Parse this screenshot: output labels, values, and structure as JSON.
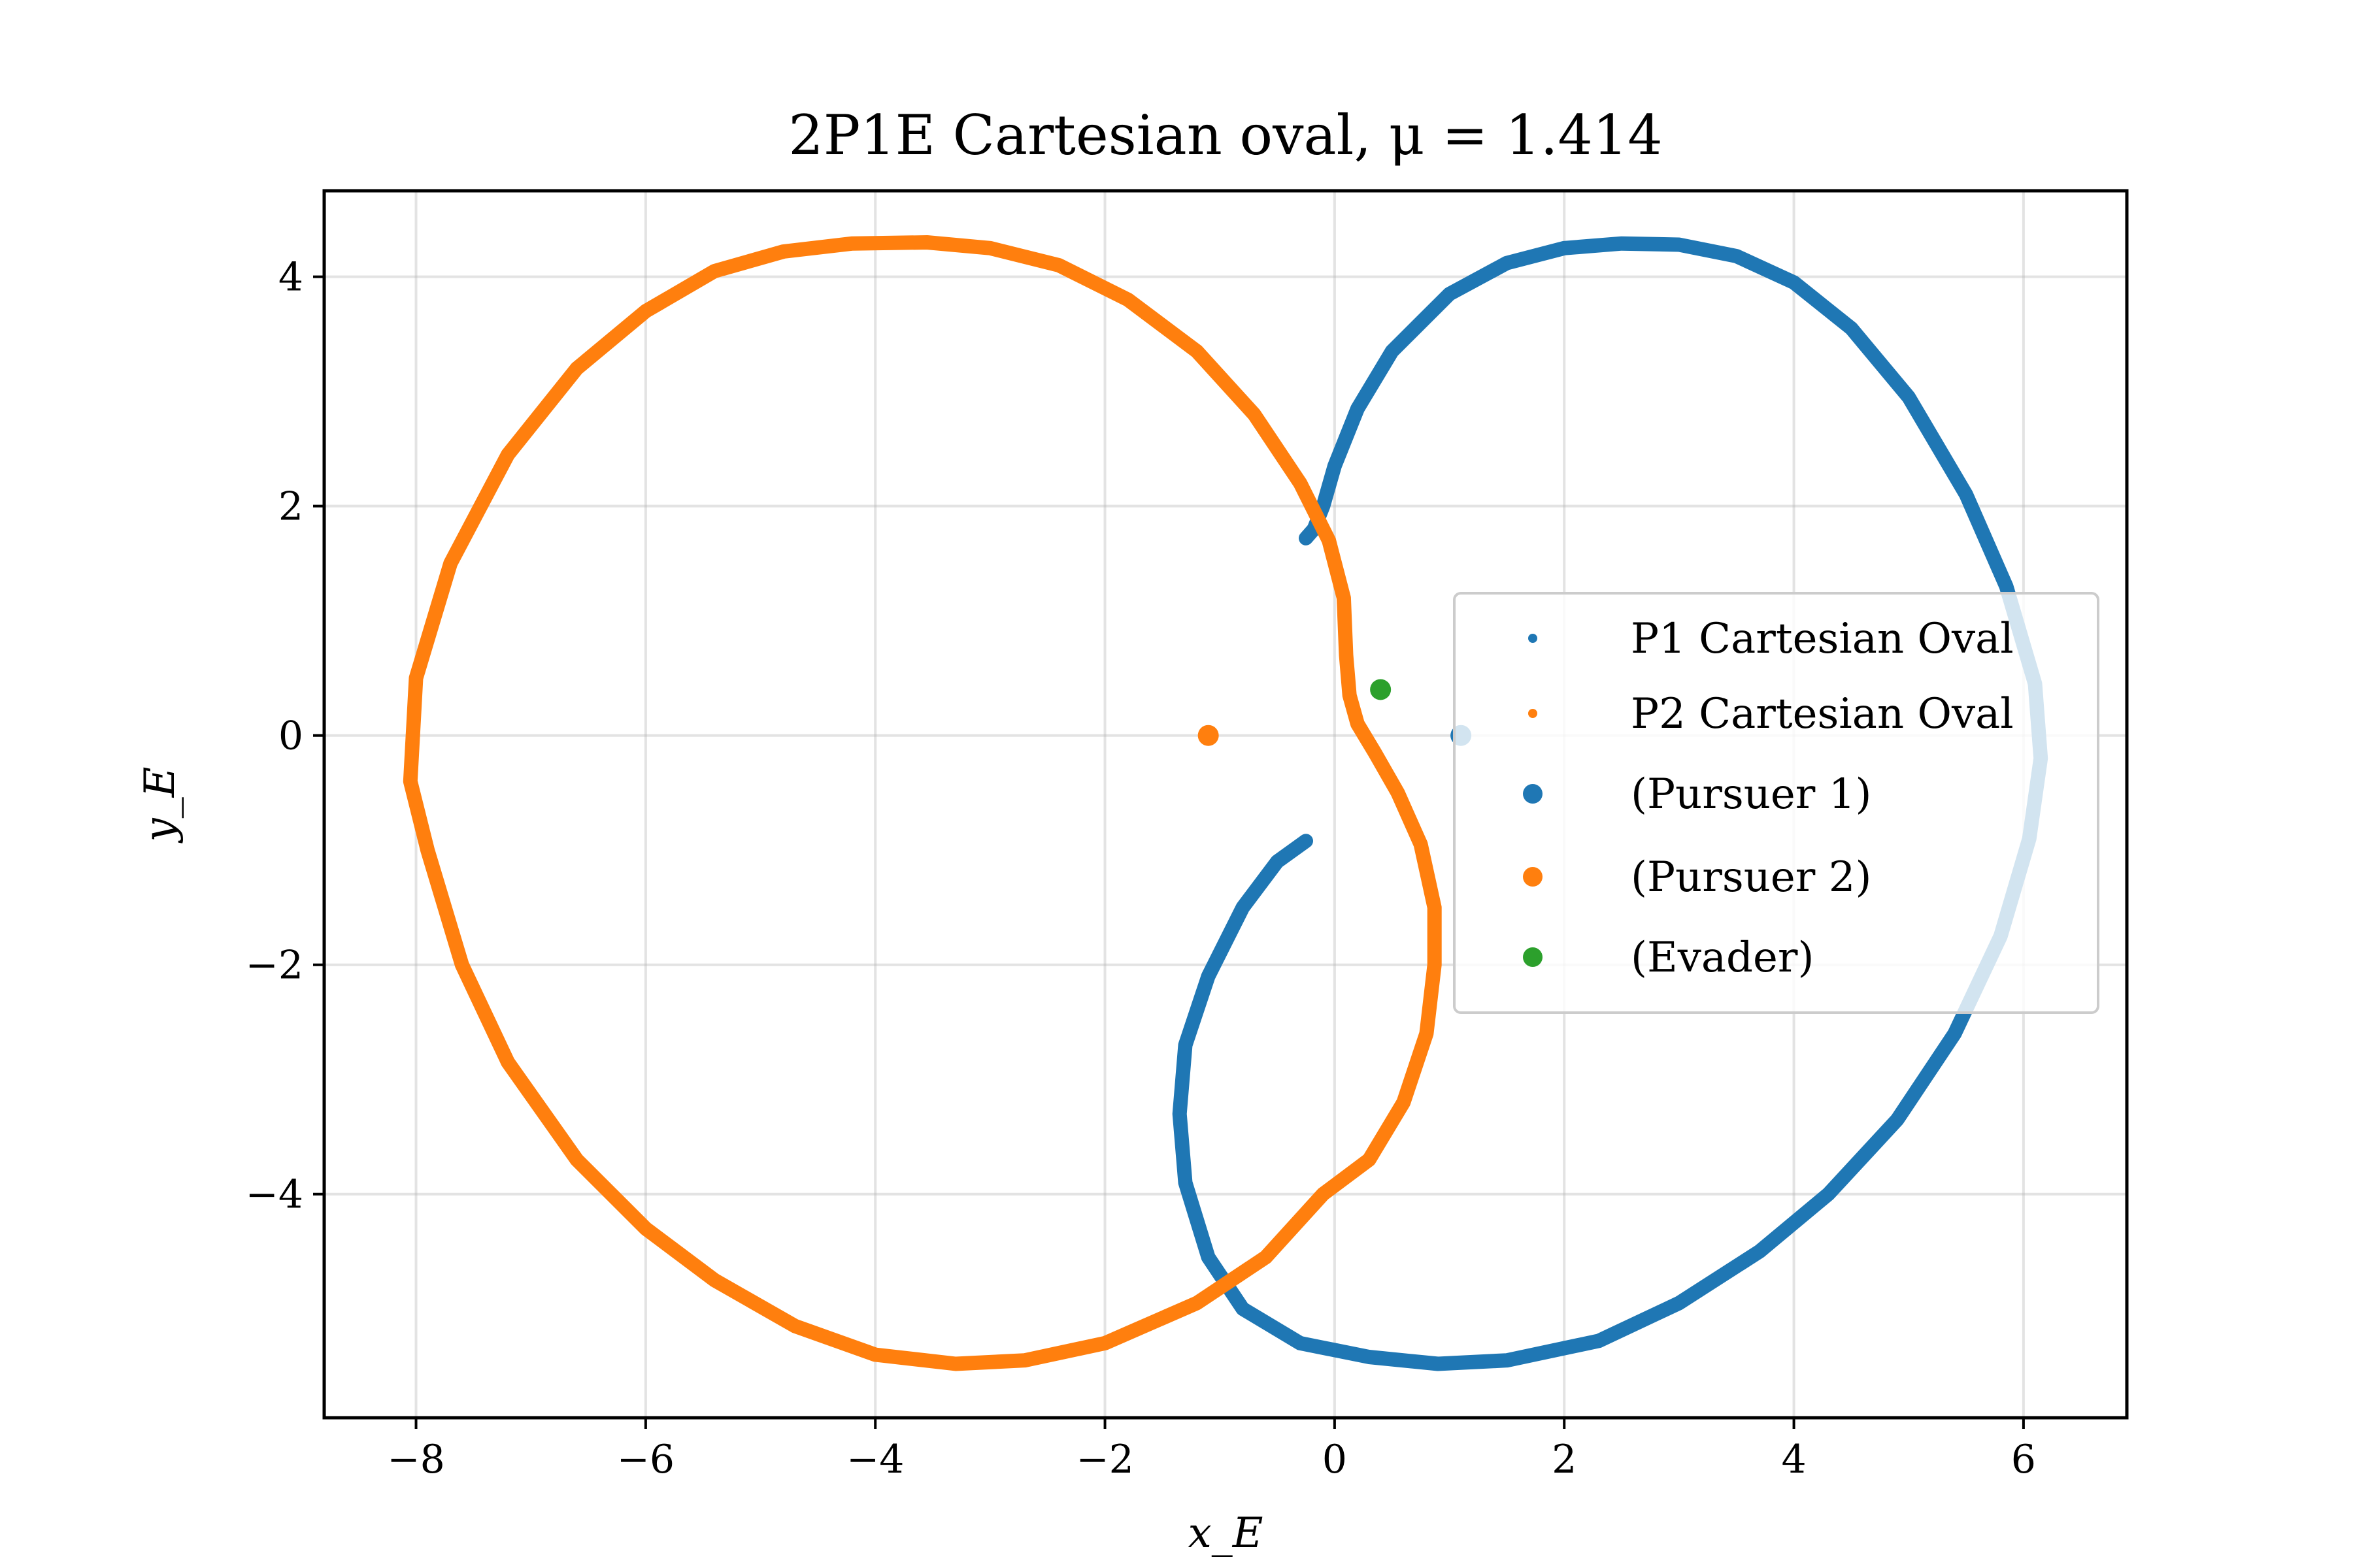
{
  "chart_data": {
    "type": "scatter",
    "title": "2P1E Cartesian oval, μ = 1.414",
    "xlabel": "x_E",
    "ylabel": "y_E",
    "xlim": [
      -8.8,
      6.9
    ],
    "ylim": [
      -5.95,
      4.75
    ],
    "xticks": [
      -8,
      -6,
      -4,
      -2,
      0,
      2,
      4,
      6
    ],
    "yticks": [
      -4,
      -2,
      0,
      2,
      4
    ],
    "xtick_labels": [
      "−8",
      "−6",
      "−4",
      "−2",
      "0",
      "2",
      "4",
      "6"
    ],
    "ytick_labels": [
      "−4",
      "−2",
      "0",
      "2",
      "4"
    ],
    "grid": true,
    "legend_position": "center-right",
    "legend": [
      "P1 Cartesian Oval",
      "P2 Cartesian Oval",
      "(Pursuer 1)",
      "(Pursuer 2)",
      "(Evader)"
    ],
    "series": [
      {
        "name": "P1 Cartesian Oval",
        "color": "#1f77b4",
        "points": [
          [
            -0.25,
            1.72
          ],
          [
            -0.18,
            1.8
          ],
          [
            -0.1,
            2.0
          ],
          [
            0.0,
            2.35
          ],
          [
            0.2,
            2.85
          ],
          [
            0.5,
            3.35
          ],
          [
            1.0,
            3.85
          ],
          [
            1.5,
            4.12
          ],
          [
            2.0,
            4.25
          ],
          [
            2.5,
            4.29
          ],
          [
            3.0,
            4.28
          ],
          [
            3.5,
            4.18
          ],
          [
            4.0,
            3.95
          ],
          [
            4.5,
            3.55
          ],
          [
            5.0,
            2.95
          ],
          [
            5.5,
            2.1
          ],
          [
            5.85,
            1.3
          ],
          [
            6.1,
            0.45
          ],
          [
            6.15,
            -0.2
          ],
          [
            6.05,
            -0.9
          ],
          [
            5.8,
            -1.75
          ],
          [
            5.4,
            -2.6
          ],
          [
            4.9,
            -3.35
          ],
          [
            4.3,
            -4.0
          ],
          [
            3.7,
            -4.5
          ],
          [
            3.0,
            -4.95
          ],
          [
            2.3,
            -5.28
          ],
          [
            1.5,
            -5.45
          ],
          [
            0.9,
            -5.48
          ],
          [
            0.3,
            -5.42
          ],
          [
            -0.3,
            -5.3
          ],
          [
            -0.8,
            -5.0
          ],
          [
            -1.1,
            -4.55
          ],
          [
            -1.3,
            -3.9
          ],
          [
            -1.35,
            -3.3
          ],
          [
            -1.3,
            -2.7
          ],
          [
            -1.1,
            -2.1
          ],
          [
            -0.8,
            -1.5
          ],
          [
            -0.5,
            -1.1
          ],
          [
            -0.25,
            -0.92
          ]
        ]
      },
      {
        "name": "P2 Cartesian Oval",
        "color": "#ff7f0e",
        "points": [
          [
            -0.1,
            -4.0
          ],
          [
            -0.6,
            -4.55
          ],
          [
            -1.2,
            -4.95
          ],
          [
            -2.0,
            -5.3
          ],
          [
            -2.7,
            -5.45
          ],
          [
            -3.3,
            -5.48
          ],
          [
            -4.0,
            -5.4
          ],
          [
            -4.7,
            -5.15
          ],
          [
            -5.4,
            -4.75
          ],
          [
            -6.0,
            -4.3
          ],
          [
            -6.6,
            -3.7
          ],
          [
            -7.2,
            -2.85
          ],
          [
            -7.6,
            -2.0
          ],
          [
            -7.9,
            -1.0
          ],
          [
            -8.05,
            -0.4
          ],
          [
            -8.0,
            0.5
          ],
          [
            -7.7,
            1.5
          ],
          [
            -7.2,
            2.45
          ],
          [
            -6.6,
            3.2
          ],
          [
            -6.0,
            3.7
          ],
          [
            -5.4,
            4.05
          ],
          [
            -4.8,
            4.22
          ],
          [
            -4.2,
            4.29
          ],
          [
            -3.55,
            4.3
          ],
          [
            -3.0,
            4.25
          ],
          [
            -2.4,
            4.1
          ],
          [
            -1.8,
            3.8
          ],
          [
            -1.2,
            3.35
          ],
          [
            -0.7,
            2.8
          ],
          [
            -0.3,
            2.2
          ],
          [
            -0.05,
            1.7
          ],
          [
            0.08,
            1.2
          ],
          [
            0.1,
            0.7
          ],
          [
            0.13,
            0.35
          ],
          [
            0.2,
            0.1
          ],
          [
            0.35,
            -0.15
          ],
          [
            0.55,
            -0.5
          ],
          [
            0.75,
            -0.95
          ],
          [
            0.87,
            -1.5
          ],
          [
            0.87,
            -2.0
          ],
          [
            0.8,
            -2.6
          ],
          [
            0.6,
            -3.2
          ],
          [
            0.3,
            -3.7
          ],
          [
            -0.1,
            -4.0
          ]
        ]
      }
    ],
    "markers": [
      {
        "name": "(Pursuer 1)",
        "x": 1.1,
        "y": 0.0,
        "color": "#1f77b4"
      },
      {
        "name": "(Pursuer 2)",
        "x": -1.1,
        "y": 0.0,
        "color": "#ff7f0e"
      },
      {
        "name": "(Evader)",
        "x": 0.4,
        "y": 0.4,
        "color": "#2ca02c"
      }
    ]
  }
}
